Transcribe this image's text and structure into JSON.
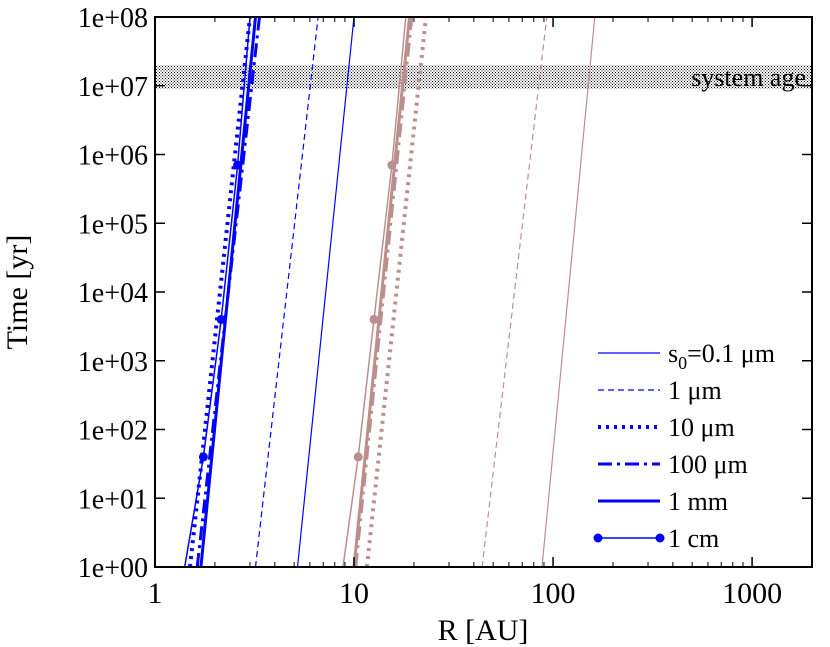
{
  "chart_data": {
    "type": "line",
    "title": "",
    "xlabel": "R [AU]",
    "ylabel": "Time [yr]",
    "xscale": "log",
    "yscale": "log",
    "xlim": [
      1,
      2000
    ],
    "ylim": [
      1,
      100000000
    ],
    "x_ticks": [
      {
        "value": 1,
        "label": "1"
      },
      {
        "value": 10,
        "label": "10"
      },
      {
        "value": 100,
        "label": "100"
      },
      {
        "value": 1000,
        "label": "1000"
      }
    ],
    "y_ticks": [
      {
        "value": 1,
        "label": "1e+00"
      },
      {
        "value": 10,
        "label": "1e+01"
      },
      {
        "value": 100,
        "label": "1e+02"
      },
      {
        "value": 1000,
        "label": "1e+03"
      },
      {
        "value": 10000,
        "label": "1e+04"
      },
      {
        "value": 100000,
        "label": "1e+05"
      },
      {
        "value": 1000000,
        "label": "1e+06"
      },
      {
        "value": 10000000,
        "label": "1e+07"
      },
      {
        "value": 100000000,
        "label": "1e+08"
      }
    ],
    "grid": false,
    "annotation": {
      "label": "system age",
      "y_range": [
        9000000,
        20000000
      ]
    },
    "colors": {
      "blue": "#0000ff",
      "brown": "#bc8f8f"
    },
    "legend": {
      "position": "bottom-right",
      "entries": [
        {
          "prefix": "s",
          "sub": "0",
          "label": "=0.1 μm",
          "style": "solid-thin",
          "color": "#0000ff"
        },
        {
          "label": "1 μm",
          "style": "dashed",
          "color": "#0000ff"
        },
        {
          "label": "10 μm",
          "style": "dotted",
          "color": "#0000ff"
        },
        {
          "label": "100 μm",
          "style": "dashdot",
          "color": "#0000ff"
        },
        {
          "label": "1 mm",
          "style": "solid-thick",
          "color": "#0000ff"
        },
        {
          "label": "1 cm",
          "style": "solid-marker",
          "color": "#0000ff"
        }
      ]
    },
    "series": [
      {
        "name": "0.1 μm (blue)",
        "color": "#0000ff",
        "style": "solid-thin",
        "x": [
          5.2,
          10.0
        ],
        "y": [
          1,
          100000000
        ]
      },
      {
        "name": "1 μm (blue)",
        "color": "#0000ff",
        "style": "dashed",
        "x": [
          3.2,
          6.6
        ],
        "y": [
          1,
          100000000
        ]
      },
      {
        "name": "10 μm (blue)",
        "color": "#0000ff",
        "style": "dotted",
        "x": [
          1.5,
          3.0
        ],
        "y": [
          1,
          100000000
        ]
      },
      {
        "name": "100 μm (blue)",
        "color": "#0000ff",
        "style": "dashdot",
        "x": [
          1.63,
          3.35
        ],
        "y": [
          1,
          100000000
        ]
      },
      {
        "name": "1 mm (blue)",
        "color": "#0000ff",
        "style": "solid-thick",
        "x": [
          1.7,
          3.2
        ],
        "y": [
          1,
          100000000
        ]
      },
      {
        "name": "1 cm (blue)",
        "color": "#0000ff",
        "style": "solid-marker",
        "x": [
          1.41,
          1.75,
          2.15,
          2.6,
          3.0
        ],
        "y": [
          1,
          40,
          4000,
          700000,
          100000000
        ],
        "markers": [
          1,
          2,
          3
        ]
      },
      {
        "name": "0.1 μm (brown)",
        "color": "#bc8f8f",
        "style": "solid-thin",
        "x": [
          88,
          162
        ],
        "y": [
          1,
          100000000
        ]
      },
      {
        "name": "1 μm (brown)",
        "color": "#bc8f8f",
        "style": "dashed",
        "x": [
          44,
          93
        ],
        "y": [
          1,
          100000000
        ]
      },
      {
        "name": "10 μm (brown)",
        "color": "#bc8f8f",
        "style": "dotted",
        "x": [
          11.6,
          23.0
        ],
        "y": [
          1,
          100000000
        ]
      },
      {
        "name": "100 μm (brown)",
        "color": "#bc8f8f",
        "style": "dashdot",
        "x": [
          10.2,
          19.5
        ],
        "y": [
          1,
          100000000
        ]
      },
      {
        "name": "1 mm (brown)",
        "color": "#bc8f8f",
        "style": "solid-thick",
        "x": [
          10.0,
          19.0
        ],
        "y": [
          1,
          100000000
        ]
      },
      {
        "name": "1 cm (brown)",
        "color": "#bc8f8f",
        "style": "solid-marker",
        "x": [
          8.8,
          10.5,
          12.6,
          15.5,
          18.2
        ],
        "y": [
          1,
          40,
          4000,
          700000,
          100000000
        ],
        "markers": [
          1,
          2,
          3
        ]
      }
    ]
  }
}
